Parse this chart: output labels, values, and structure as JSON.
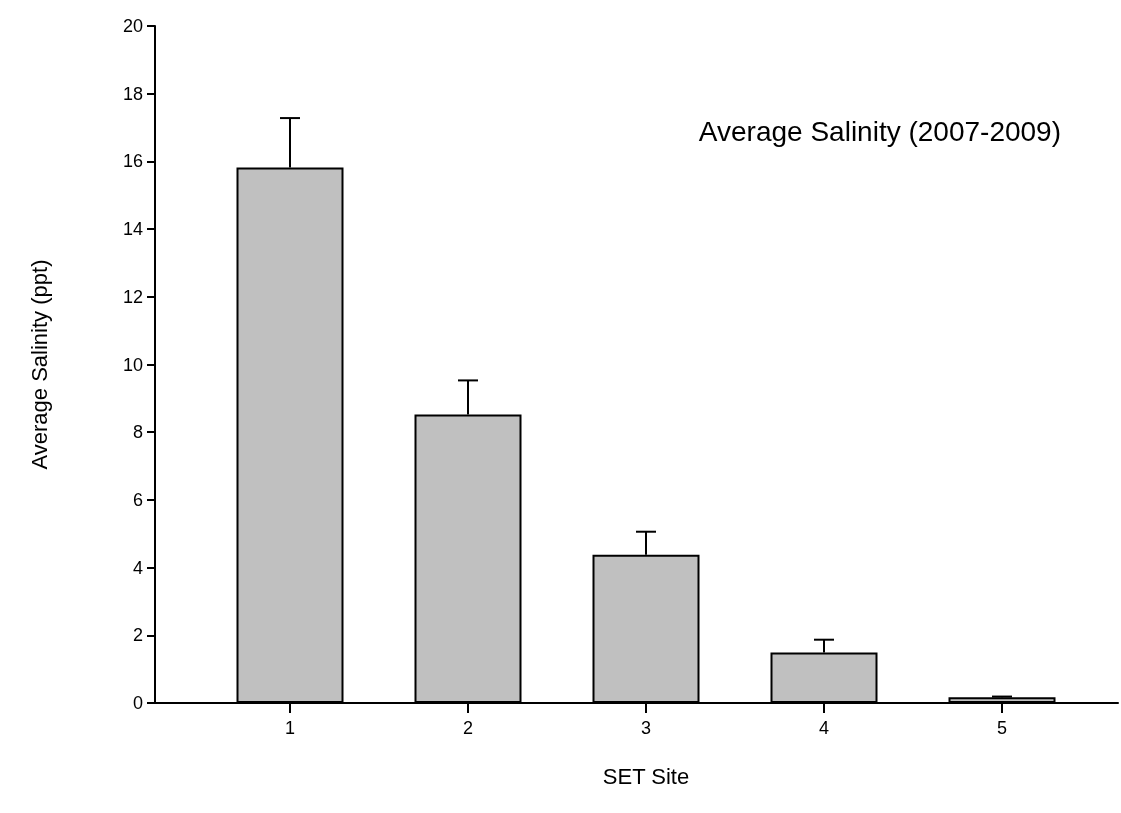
{
  "chart_data": {
    "type": "bar",
    "title": "Average Salinity (2007-2009)",
    "xlabel": "SET Site",
    "ylabel": "Average Salinity (ppt)",
    "categories": [
      "1",
      "2",
      "3",
      "4",
      "5"
    ],
    "values": [
      15.82,
      8.52,
      4.38,
      1.49,
      0.17
    ],
    "errors": [
      [
        15.82,
        17.28
      ],
      [
        8.52,
        9.53
      ],
      [
        4.38,
        5.06
      ],
      [
        1.49,
        1.87
      ],
      [
        0.17,
        0.19
      ]
    ],
    "color": "#c0c0c0",
    "ylim": [
      0,
      20
    ],
    "yticks": [
      0,
      2,
      4,
      6,
      8,
      10,
      12,
      14,
      16,
      18,
      20
    ],
    "grid": false
  }
}
